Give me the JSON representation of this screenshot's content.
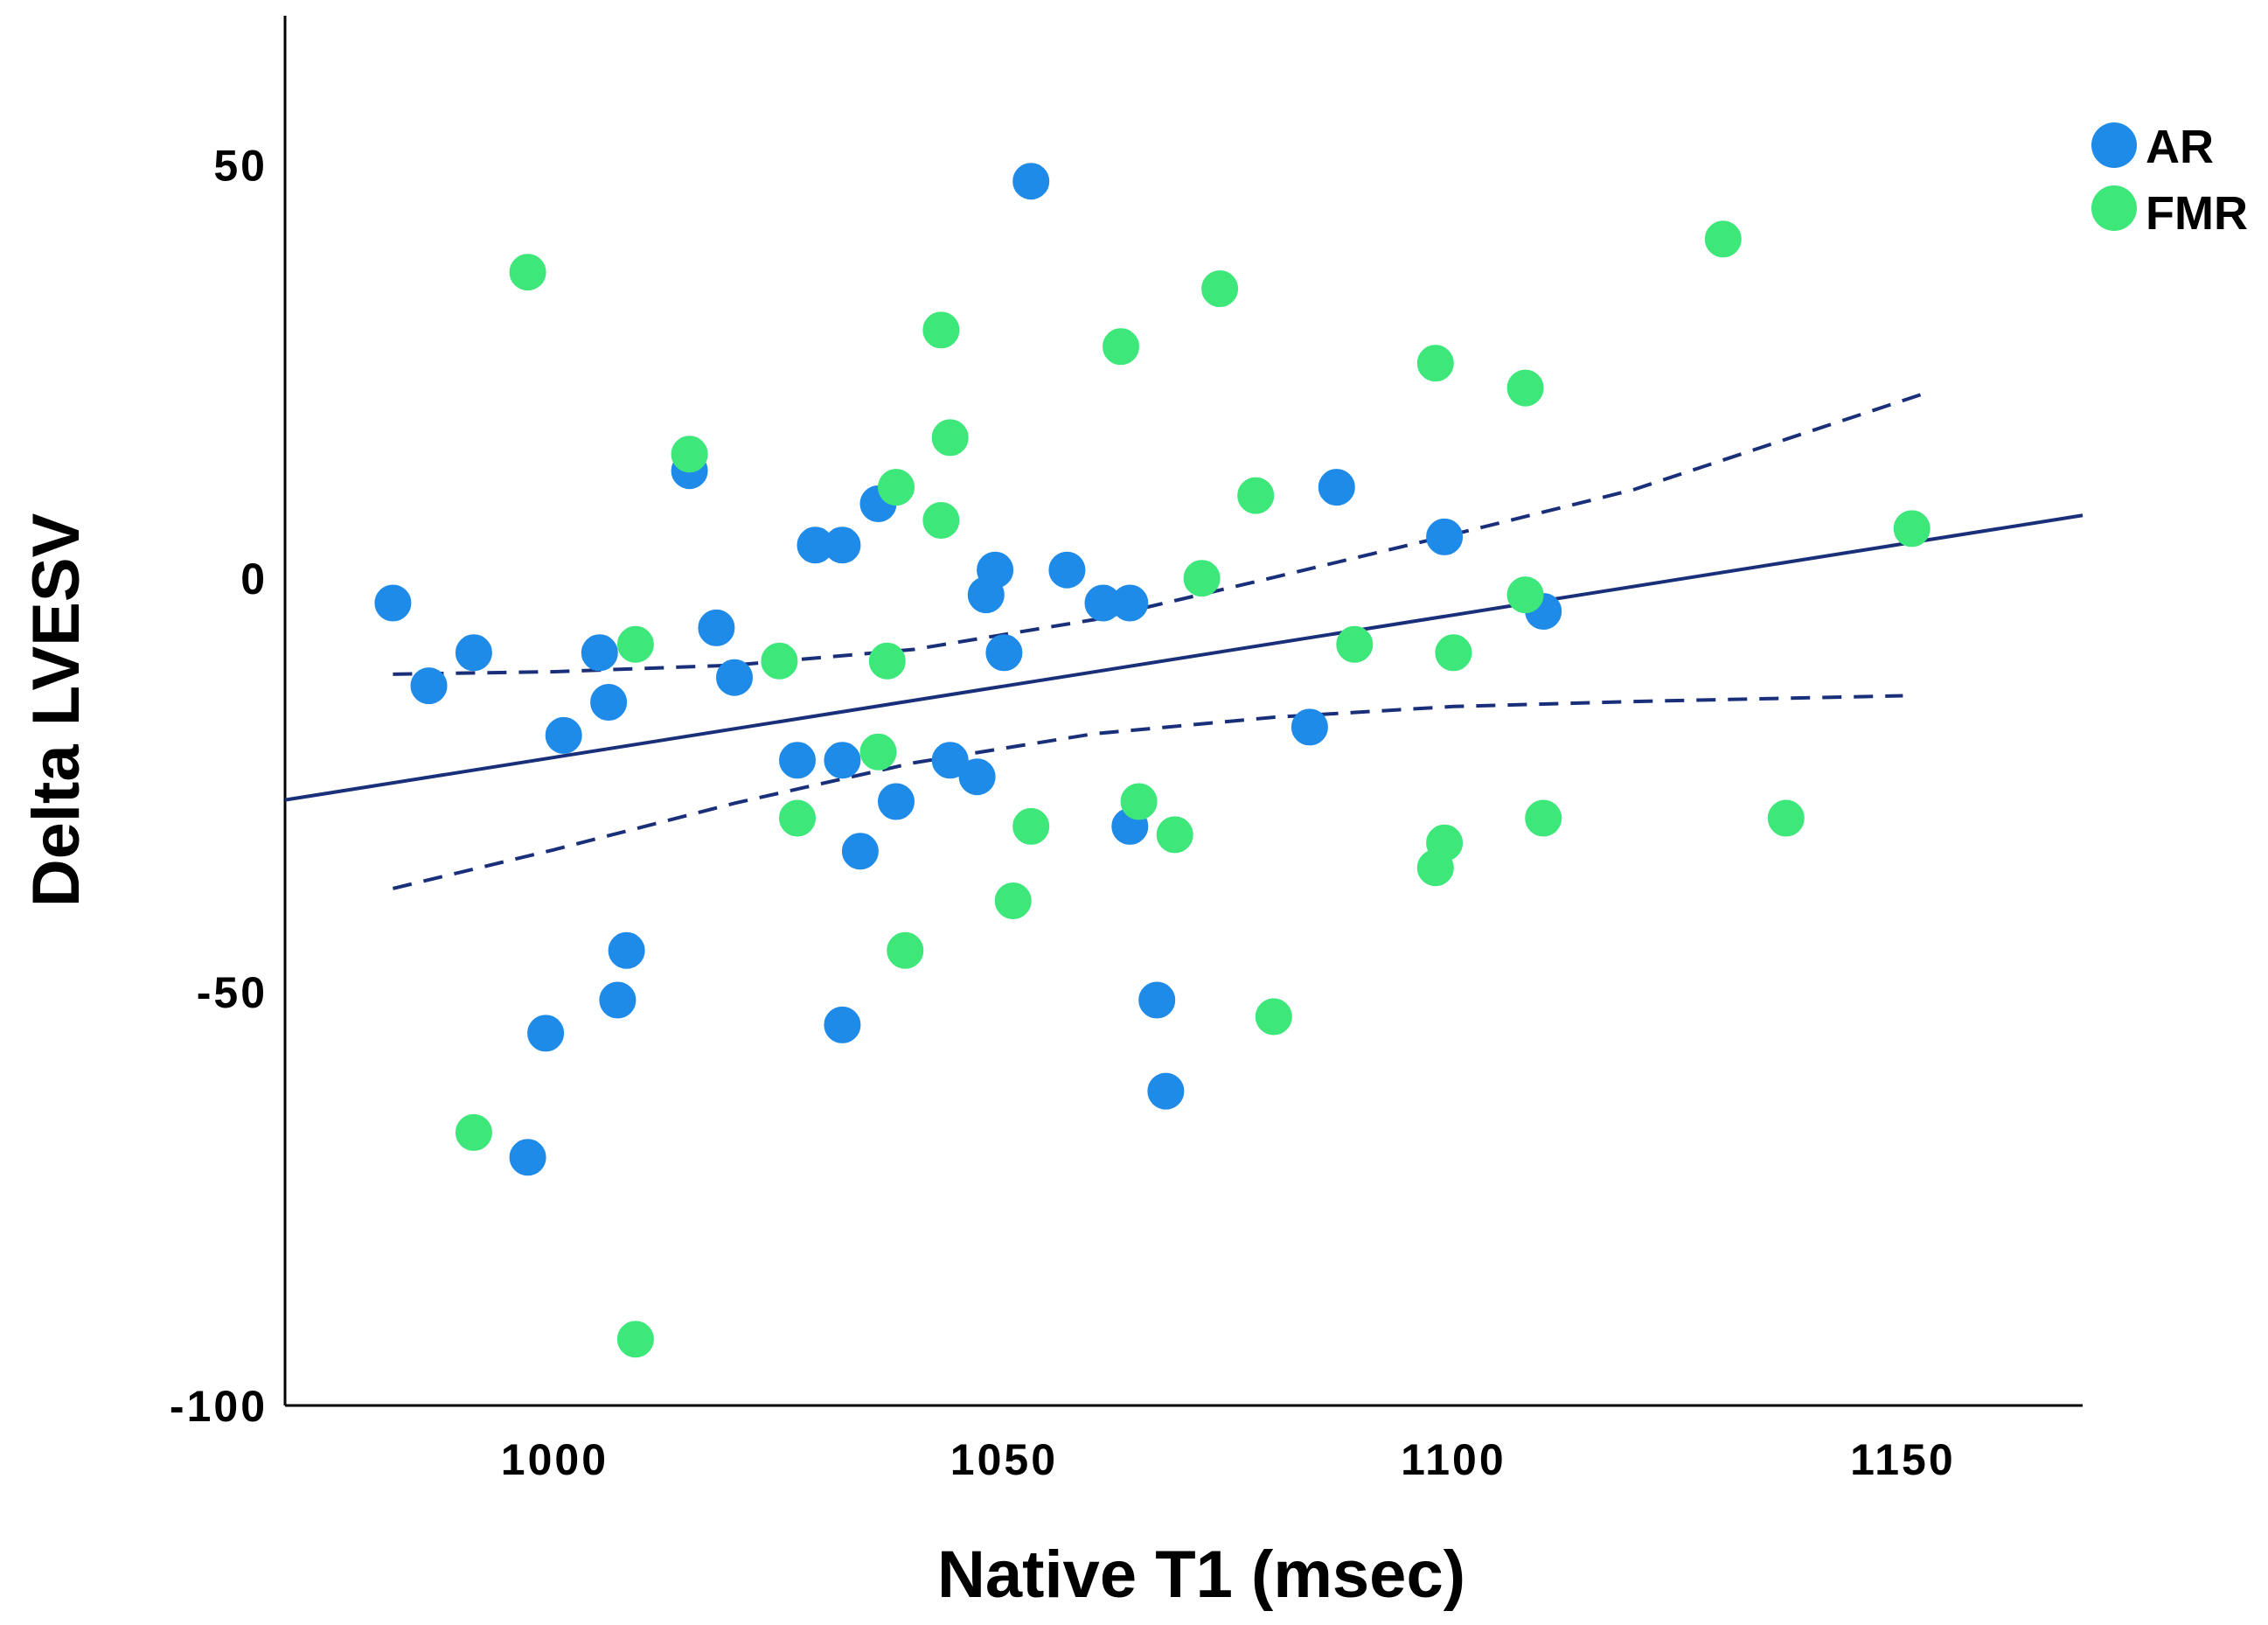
{
  "chart_data": {
    "type": "scatter",
    "title": "",
    "xlabel": "Native T1 (msec)",
    "ylabel": "Delta LVESV",
    "xlim": [
      970,
      1170
    ],
    "ylim": [
      -100,
      68
    ],
    "xticks": [
      1000,
      1050,
      1100,
      1150
    ],
    "yticks": [
      50,
      0,
      -50,
      -100
    ],
    "xtick_labels": [
      "1000",
      "1050",
      "1100",
      "1150"
    ],
    "ytick_labels": [
      "50",
      "0",
      "-50",
      "-100"
    ],
    "grid": false,
    "legend_position": "top-right",
    "series": [
      {
        "name": "AR",
        "color": "#1f8be8",
        "points": [
          [
            982,
            -3
          ],
          [
            986,
            -13
          ],
          [
            991,
            -9
          ],
          [
            997,
            -70
          ],
          [
            999,
            -55
          ],
          [
            1001,
            -19
          ],
          [
            1005,
            -9
          ],
          [
            1006,
            -15
          ],
          [
            1007,
            -51
          ],
          [
            1008,
            -45
          ],
          [
            1015,
            13
          ],
          [
            1018,
            -6
          ],
          [
            1020,
            -12
          ],
          [
            1027,
            -22
          ],
          [
            1029,
            4
          ],
          [
            1032,
            4
          ],
          [
            1032,
            -22
          ],
          [
            1032,
            -54
          ],
          [
            1034,
            -33
          ],
          [
            1036,
            9
          ],
          [
            1038,
            -27
          ],
          [
            1044,
            -22
          ],
          [
            1047,
            -24
          ],
          [
            1048,
            -2
          ],
          [
            1049,
            1
          ],
          [
            1050,
            -9
          ],
          [
            1053,
            48
          ],
          [
            1057,
            1
          ],
          [
            1061,
            -3
          ],
          [
            1064,
            -3
          ],
          [
            1064,
            -30
          ],
          [
            1067,
            -51
          ],
          [
            1068,
            -62
          ],
          [
            1084,
            -18
          ],
          [
            1087,
            11
          ],
          [
            1099,
            5
          ],
          [
            1110,
            -4
          ]
        ]
      },
      {
        "name": "FMR",
        "color": "#3ee77a",
        "points": [
          [
            991,
            -67
          ],
          [
            997,
            37
          ],
          [
            1009,
            -8
          ],
          [
            1009,
            -92
          ],
          [
            1015,
            15
          ],
          [
            1025,
            -10
          ],
          [
            1027,
            -29
          ],
          [
            1036,
            -21
          ],
          [
            1037,
            -10
          ],
          [
            1038,
            11
          ],
          [
            1039,
            -45
          ],
          [
            1043,
            30
          ],
          [
            1043,
            7
          ],
          [
            1044,
            17
          ],
          [
            1051,
            -39
          ],
          [
            1053,
            -30
          ],
          [
            1063,
            28
          ],
          [
            1065,
            -27
          ],
          [
            1069,
            -31
          ],
          [
            1072,
            0
          ],
          [
            1074,
            35
          ],
          [
            1078,
            10
          ],
          [
            1080,
            -53
          ],
          [
            1089,
            -8
          ],
          [
            1098,
            26
          ],
          [
            1098,
            -35
          ],
          [
            1099,
            -32
          ],
          [
            1100,
            -9
          ],
          [
            1108,
            -2
          ],
          [
            1108,
            23
          ],
          [
            1110,
            -29
          ],
          [
            1130,
            41
          ],
          [
            1137,
            -29
          ],
          [
            1151,
            6
          ]
        ]
      }
    ],
    "fit_line": {
      "x": [
        970,
        1170
      ],
      "y": [
        -26.8,
        7.6
      ],
      "color": "#1a2f7a",
      "style": "solid"
    },
    "ci_lower": {
      "x": [
        982,
        1000,
        1020,
        1040,
        1060,
        1080,
        1100,
        1120,
        1150
      ],
      "y": [
        -37.5,
        -32.8,
        -27.2,
        -22.3,
        -18.8,
        -16.8,
        -15.5,
        -14.9,
        -14.2
      ],
      "color": "#1a2f7a",
      "style": "dashed"
    },
    "ci_upper": {
      "x": [
        982,
        1000,
        1020,
        1040,
        1060,
        1080,
        1100,
        1120,
        1152
      ],
      "y": [
        -11.6,
        -11.3,
        -10.5,
        -8.6,
        -5.0,
        0.1,
        5.3,
        10.7,
        22.2
      ],
      "color": "#1a2f7a",
      "style": "dashed"
    }
  }
}
